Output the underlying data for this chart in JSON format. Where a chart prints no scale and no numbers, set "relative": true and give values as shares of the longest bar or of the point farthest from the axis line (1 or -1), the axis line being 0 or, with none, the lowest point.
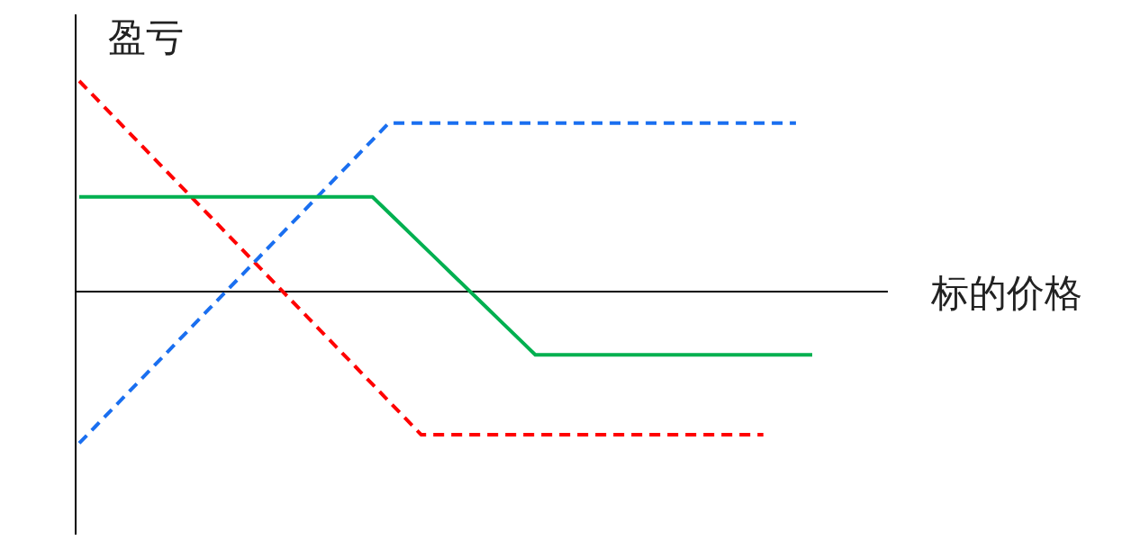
{
  "chart_data": {
    "type": "line",
    "relative": true,
    "xlabel": "标的价格",
    "ylabel": "盈亏",
    "categories": [
      null,
      null,
      null,
      null,
      null,
      null,
      null,
      null,
      null,
      null,
      null,
      null,
      null,
      null,
      null,
      null,
      null,
      null,
      null,
      null,
      null,
      null,
      null,
      null,
      null,
      null,
      null,
      null,
      null,
      null,
      null,
      null,
      null,
      null,
      null,
      null,
      null,
      null,
      null,
      null,
      null,
      null,
      null,
      null,
      null,
      null
    ],
    "series": [
      {
        "color": "#ff0000",
        "line_style": "dashed",
        "values": [
          1,
          0.92,
          0.84,
          0.76,
          0.68,
          0.6,
          0.52,
          0.44,
          0.36,
          0.28,
          0.2,
          0.12,
          0.04,
          -0.04,
          -0.12,
          -0.2,
          -0.28,
          -0.36,
          -0.44,
          -0.52,
          -0.6,
          -0.68,
          -0.68,
          -0.68,
          -0.68,
          -0.68,
          -0.68,
          -0.68,
          -0.68,
          -0.68,
          -0.68,
          -0.68,
          -0.68,
          -0.68,
          -0.68,
          -0.68,
          -0.68,
          -0.68,
          -0.68,
          -0.68,
          -0.68,
          -0.68,
          -0.68,
          null,
          null,
          null
        ]
      },
      {
        "color": "#1a6ff0",
        "line_style": "dashed",
        "values": [
          -0.72,
          -0.64,
          -0.56,
          -0.48,
          -0.4,
          -0.32,
          -0.24,
          -0.16,
          -0.08,
          0,
          0.08,
          0.16,
          0.24,
          0.32,
          0.4,
          0.48,
          0.56,
          0.64,
          0.72,
          0.8,
          0.8,
          0.8,
          0.8,
          0.8,
          0.8,
          0.8,
          0.8,
          0.8,
          0.8,
          0.8,
          0.8,
          0.8,
          0.8,
          0.8,
          0.8,
          0.8,
          0.8,
          0.8,
          0.8,
          0.8,
          0.8,
          0.8,
          0.8,
          0.8,
          0.8,
          null
        ]
      },
      {
        "color": "#00b050",
        "line_style": "solid",
        "values": [
          0.45,
          0.45,
          0.45,
          0.45,
          0.45,
          0.45,
          0.45,
          0.45,
          0.45,
          0.45,
          0.45,
          0.45,
          0.45,
          0.45,
          0.45,
          0.45,
          0.45,
          0.45,
          0.45,
          0.375,
          0.3,
          0.225,
          0.15,
          0.075,
          0,
          -0.075,
          -0.15,
          -0.225,
          -0.3,
          -0.3,
          -0.3,
          -0.3,
          -0.3,
          -0.3,
          -0.3,
          -0.3,
          -0.3,
          -0.3,
          -0.3,
          -0.3,
          -0.3,
          -0.3,
          -0.3,
          -0.3,
          -0.3,
          -0.3
        ]
      }
    ]
  }
}
